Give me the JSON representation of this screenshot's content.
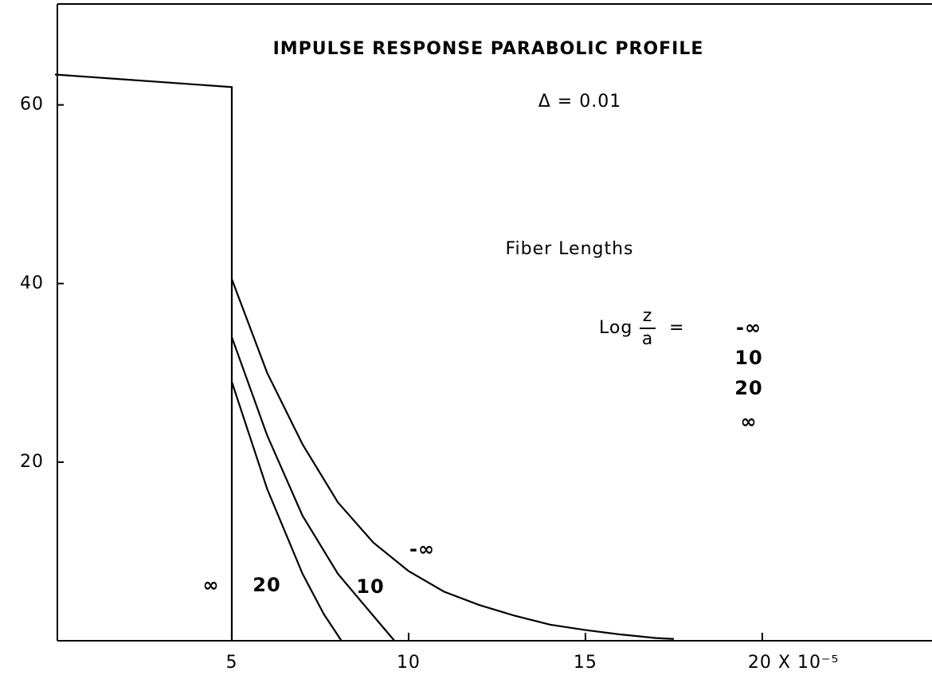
{
  "chart_data": {
    "type": "line",
    "title": "IMPULSE   RESPONSE   PARABOLIC   PROFILE",
    "subtitle": "Δ = 0.01",
    "annotations": [
      "Fiber  Lengths"
    ],
    "legend_title": {
      "prefix": "Log",
      "numerator": "z",
      "denominator": "a",
      "equals": "="
    },
    "xlim": [
      0,
      24.8
    ],
    "ylim": [
      0,
      71.3
    ],
    "xticks": [
      5,
      10,
      15,
      {
        "value": 20,
        "label": "20 X 10⁻⁵"
      }
    ],
    "yticks": [
      20,
      40,
      60
    ],
    "grid": false,
    "series": [
      {
        "name": "-∞",
        "color": "#000000",
        "x": [
          5,
          6,
          7,
          8,
          9,
          10,
          11,
          12,
          13,
          14,
          15,
          16,
          17,
          17.5
        ],
        "values": [
          40.5,
          30,
          22,
          15.5,
          11,
          7.8,
          5.5,
          4,
          2.8,
          1.8,
          1.2,
          0.7,
          0.3,
          0.2
        ]
      },
      {
        "name": "10",
        "color": "#000000",
        "x": [
          5,
          6,
          7,
          8,
          9,
          9.6
        ],
        "values": [
          34,
          23,
          14,
          7.5,
          2.8,
          0
        ]
      },
      {
        "name": "20",
        "color": "#000000",
        "x": [
          5,
          6,
          7,
          7.6,
          8.1
        ],
        "values": [
          29,
          17,
          7.5,
          3,
          0
        ]
      },
      {
        "name": "∞",
        "color": "#000000",
        "x": [
          0,
          5,
          5
        ],
        "values": [
          63.4,
          62,
          0
        ]
      }
    ]
  }
}
